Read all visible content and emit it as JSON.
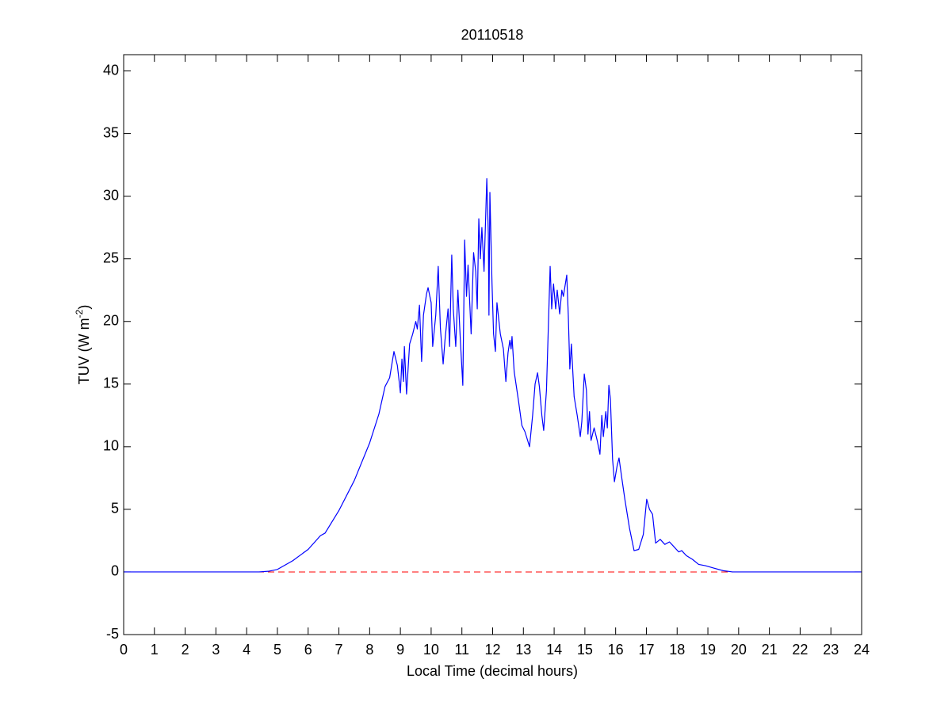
{
  "chart_data": {
    "type": "line",
    "title": "20110518",
    "xlabel": "Local Time (decimal hours)",
    "ylabel": {
      "text": "TUV (W m",
      "superscript": "-2",
      "suffix": ")"
    },
    "xlim": [
      0,
      24
    ],
    "xticks": [
      0,
      1,
      2,
      3,
      4,
      5,
      6,
      7,
      8,
      9,
      10,
      11,
      12,
      13,
      14,
      15,
      16,
      17,
      18,
      19,
      20,
      21,
      22,
      23,
      24
    ],
    "ylim": [
      -5,
      41.3
    ],
    "yticks": [
      -5,
      0,
      5,
      10,
      15,
      20,
      25,
      30,
      35,
      40
    ],
    "reference_line": {
      "value": 0,
      "color": "#ff0000",
      "style": "dashed"
    },
    "series": [
      {
        "color": "#0000ff",
        "x": [
          0,
          4.4,
          4.7,
          5.0,
          5.5,
          6.0,
          6.4,
          6.55,
          7.0,
          7.5,
          8.0,
          8.3,
          8.5,
          8.65,
          8.79,
          8.9,
          8.97,
          9.0,
          9.05,
          9.1,
          9.13,
          9.2,
          9.3,
          9.4,
          9.5,
          9.55,
          9.62,
          9.69,
          9.75,
          9.85,
          9.9,
          10.0,
          10.05,
          10.15,
          10.23,
          10.3,
          10.39,
          10.45,
          10.55,
          10.6,
          10.67,
          10.72,
          10.8,
          10.87,
          10.95,
          11.03,
          11.09,
          11.15,
          11.2,
          11.3,
          11.38,
          11.45,
          11.5,
          11.55,
          11.6,
          11.65,
          11.72,
          11.81,
          11.86,
          11.88,
          11.91,
          11.98,
          12.03,
          12.09,
          12.14,
          12.25,
          12.35,
          12.43,
          12.5,
          12.56,
          12.6,
          12.63,
          12.7,
          12.85,
          12.95,
          13.05,
          13.2,
          13.3,
          13.38,
          13.46,
          13.52,
          13.6,
          13.66,
          13.75,
          13.87,
          13.92,
          13.98,
          14.05,
          14.1,
          14.18,
          14.25,
          14.3,
          14.41,
          14.46,
          14.51,
          14.56,
          14.65,
          14.75,
          14.85,
          14.9,
          14.98,
          15.05,
          15.1,
          15.15,
          15.2,
          15.3,
          15.4,
          15.49,
          15.55,
          15.6,
          15.68,
          15.73,
          15.78,
          15.83,
          15.9,
          15.96,
          16.05,
          16.11,
          16.2,
          16.3,
          16.45,
          16.6,
          16.75,
          16.9,
          17.01,
          17.1,
          17.2,
          17.3,
          17.45,
          17.6,
          17.75,
          17.9,
          18.05,
          18.15,
          18.3,
          18.5,
          18.7,
          18.92,
          19.2,
          19.5,
          19.8,
          24
        ],
        "values": [
          0,
          0,
          0.05,
          0.2,
          0.9,
          1.8,
          2.9,
          3.1,
          4.9,
          7.3,
          10.3,
          12.6,
          14.8,
          15.5,
          17.6,
          16.5,
          15.0,
          14.3,
          17.0,
          15.2,
          18.0,
          14.2,
          18.2,
          19.0,
          20.0,
          19.4,
          21.3,
          16.8,
          20.5,
          22.2,
          22.7,
          21.5,
          18.0,
          20.5,
          24.4,
          19.5,
          16.6,
          18.5,
          21.0,
          18.0,
          25.3,
          21.0,
          18.0,
          22.5,
          18.5,
          14.9,
          26.5,
          22.0,
          24.5,
          19.0,
          25.5,
          24.0,
          21.0,
          28.2,
          25.0,
          27.5,
          24.0,
          31.4,
          27.0,
          20.5,
          30.3,
          23.0,
          19.0,
          17.6,
          21.5,
          19.0,
          17.8,
          15.2,
          17.5,
          18.5,
          17.8,
          18.8,
          16.0,
          13.5,
          11.7,
          11.2,
          10.0,
          12.5,
          15.0,
          15.9,
          14.8,
          12.5,
          11.3,
          14.5,
          24.4,
          21.0,
          23.0,
          21.0,
          22.5,
          20.6,
          22.5,
          22.0,
          23.7,
          20.5,
          16.2,
          18.2,
          14.0,
          12.5,
          10.8,
          12.0,
          15.8,
          14.5,
          11.0,
          12.8,
          10.5,
          11.5,
          10.5,
          9.4,
          12.5,
          10.8,
          12.8,
          11.5,
          14.9,
          13.8,
          9.0,
          7.2,
          8.5,
          9.1,
          7.5,
          5.8,
          3.5,
          1.7,
          1.8,
          3.0,
          5.8,
          5.0,
          4.6,
          2.3,
          2.6,
          2.2,
          2.4,
          2.0,
          1.6,
          1.7,
          1.3,
          1.0,
          0.6,
          0.5,
          0.3,
          0.1,
          0.0,
          0
        ]
      }
    ]
  }
}
